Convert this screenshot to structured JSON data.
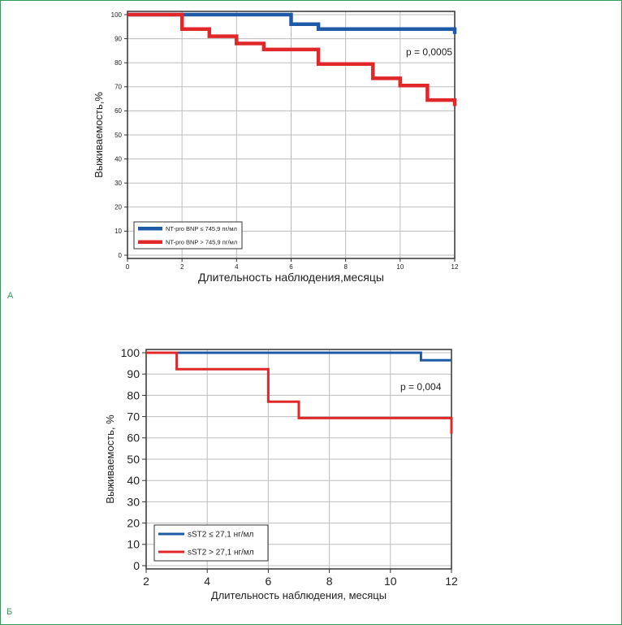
{
  "panels": {
    "a_label": "А",
    "b_label": "Б"
  },
  "chart_data": [
    {
      "type": "line",
      "step": true,
      "xlabel": "Длительность наблюдения,месяцы",
      "ylabel": "Выживаемость,%",
      "annotation": "p = 0,0005",
      "xlim": [
        0,
        12
      ],
      "ylim": [
        0,
        100
      ],
      "xticks": [
        0,
        2,
        4,
        6,
        8,
        10,
        12
      ],
      "yticks": [
        0,
        10,
        20,
        30,
        40,
        50,
        60,
        70,
        80,
        90,
        100
      ],
      "grid": true,
      "legend_position": "bottom-left",
      "series": [
        {
          "name": "NT-pro BNP ≤ 745,9 пг/мл",
          "color": "#1f5aa6",
          "points": [
            [
              0,
              100
            ],
            [
              6,
              100
            ],
            [
              6,
              96
            ],
            [
              7,
              96
            ],
            [
              7,
              94
            ],
            [
              12,
              94
            ],
            [
              12,
              92
            ]
          ]
        },
        {
          "name": "NT-pro BNP > 745,9 пг/мл",
          "color": "#e0282b",
          "points": [
            [
              0,
              100
            ],
            [
              2,
              100
            ],
            [
              2,
              94
            ],
            [
              3,
              94
            ],
            [
              3,
              91
            ],
            [
              4,
              91
            ],
            [
              4,
              88
            ],
            [
              5,
              88
            ],
            [
              5,
              85.5
            ],
            [
              7,
              85.5
            ],
            [
              7,
              79.5
            ],
            [
              9,
              79.5
            ],
            [
              9,
              73.5
            ],
            [
              10,
              73.5
            ],
            [
              10,
              70.5
            ],
            [
              11,
              70.5
            ],
            [
              11,
              64.5
            ],
            [
              12,
              64.5
            ],
            [
              12,
              62
            ]
          ]
        }
      ]
    },
    {
      "type": "line",
      "step": true,
      "xlabel": "Длительность наблюдения, месяцы",
      "ylabel": "Выживаемость, %",
      "annotation": "p = 0,004",
      "xlim": [
        2,
        12
      ],
      "ylim": [
        0,
        100
      ],
      "xticks": [
        2,
        4,
        6,
        8,
        10,
        12
      ],
      "yticks": [
        0,
        10,
        20,
        30,
        40,
        50,
        60,
        70,
        80,
        90,
        100
      ],
      "grid": true,
      "legend_position": "bottom-left",
      "series": [
        {
          "name": "sST2 ≤ 27,1 нг/мл",
          "color": "#1f5aa6",
          "points": [
            [
              2,
              100
            ],
            [
              11,
              100
            ],
            [
              11,
              96.5
            ],
            [
              12,
              96.5
            ]
          ]
        },
        {
          "name": "sST2 > 27,1 нг/мл",
          "color": "#e0282b",
          "points": [
            [
              2,
              100
            ],
            [
              3,
              100
            ],
            [
              3,
              92.3
            ],
            [
              6,
              92.3
            ],
            [
              6,
              77
            ],
            [
              7,
              77
            ],
            [
              7,
              69.3
            ],
            [
              12,
              69.3
            ],
            [
              12,
              62
            ]
          ]
        }
      ]
    }
  ]
}
